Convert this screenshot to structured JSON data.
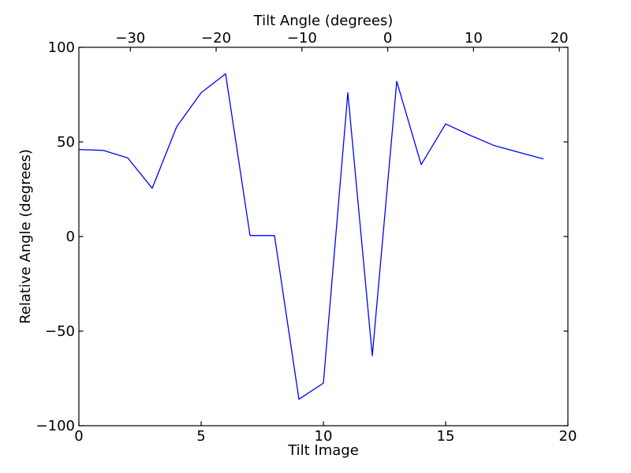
{
  "figure": {
    "background": "#ffffff",
    "frame_color": "#000000"
  },
  "chart_data": {
    "type": "line",
    "title": "",
    "xlabel": "Tilt Image",
    "ylabel": "Relative Angle (degrees)",
    "xlim": [
      0,
      20
    ],
    "ylim": [
      -100,
      100
    ],
    "grid": false,
    "legend": null,
    "xticks": [
      0,
      5,
      10,
      15,
      20
    ],
    "xtick_labels": [
      "0",
      "5",
      "10",
      "15",
      "20"
    ],
    "yticks": [
      100,
      50,
      0,
      -50,
      -100
    ],
    "ytick_labels": [
      "100",
      "50",
      "0",
      "−50",
      "−100"
    ],
    "top_axis": {
      "label": "Tilt Angle (degrees)",
      "lim": [
        -36.0,
        21.0
      ],
      "ticks": [
        -30,
        -20,
        -10,
        0,
        10,
        20
      ],
      "tick_labels": [
        "−30",
        "−20",
        "−10",
        "0",
        "10",
        "20"
      ]
    },
    "series": [
      {
        "name": "relative-angle",
        "color": "#0000ff",
        "x": [
          0,
          1,
          2,
          3,
          4,
          5,
          6,
          7,
          8,
          9,
          10,
          11,
          12,
          13,
          14,
          15,
          16,
          17,
          18,
          19
        ],
        "y": [
          46,
          45.5,
          41.5,
          25.5,
          58,
          76,
          86,
          0.5,
          0.5,
          -86,
          -77.5,
          76,
          -63,
          82,
          38,
          59.5,
          53.5,
          48,
          44.5,
          41
        ]
      }
    ]
  }
}
